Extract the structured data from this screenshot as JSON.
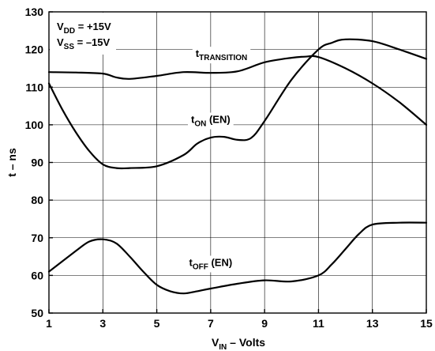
{
  "chart_data": {
    "type": "line",
    "title": "",
    "xlabel": {
      "main": "V",
      "sub": "IN",
      "rest": " – Volts"
    },
    "ylabel": "t – ns",
    "xlim": [
      1,
      15
    ],
    "ylim": [
      50,
      130
    ],
    "xticks": [
      1,
      3,
      5,
      7,
      9,
      11,
      13,
      15
    ],
    "yticks": [
      50,
      60,
      70,
      80,
      90,
      100,
      110,
      120,
      130
    ],
    "grid": true,
    "legend": "none",
    "conditions": [
      {
        "main": "V",
        "sub": "DD",
        "rest": " = +15V"
      },
      {
        "main": "V",
        "sub": "SS",
        "rest": " = –15V"
      }
    ],
    "series": [
      {
        "name": "tTRANSITION",
        "label": {
          "main": "t",
          "sub": "TRANSITION",
          "rest": "",
          "at": [
            7.4,
            118
          ]
        },
        "x": [
          1,
          2,
          3,
          3.5,
          4,
          5,
          6,
          7,
          8,
          9,
          10,
          10.5,
          11,
          12,
          13,
          14,
          15
        ],
        "y": [
          114,
          113.9,
          113.6,
          112.6,
          112.2,
          113,
          114,
          113.8,
          114.2,
          116.6,
          117.8,
          118.1,
          118,
          115,
          111,
          106,
          100
        ]
      },
      {
        "name": "tON (EN)",
        "label": {
          "main": "t",
          "sub": "ON",
          "rest": " (EN)",
          "at": [
            7.0,
            100.5
          ]
        },
        "x": [
          1,
          1.5,
          2,
          2.5,
          3,
          3.5,
          4,
          5,
          6,
          6.5,
          7,
          7.5,
          8,
          8.5,
          9,
          10,
          11,
          11.5,
          12,
          13,
          14,
          15
        ],
        "y": [
          111,
          104,
          98,
          93,
          89.5,
          88.5,
          88.5,
          89,
          92,
          95,
          96.6,
          96.8,
          96,
          96.5,
          101,
          112,
          120,
          121.8,
          122.7,
          122.2,
          120,
          117.5
        ]
      },
      {
        "name": "tOFF (EN)",
        "label": {
          "main": "t",
          "sub": "OFF",
          "rest": " (EN)",
          "at": [
            7.0,
            62.5
          ]
        },
        "x": [
          1,
          2,
          2.5,
          3,
          3.5,
          4,
          4.5,
          5,
          5.5,
          6,
          6.5,
          7,
          8,
          9,
          10,
          11,
          11.5,
          12,
          12.5,
          13,
          14,
          15
        ],
        "y": [
          61,
          66.5,
          69,
          69.6,
          68.5,
          65,
          61,
          57.5,
          55.8,
          55.2,
          55.8,
          56.5,
          57.8,
          58.7,
          58.4,
          60,
          63,
          67,
          71,
          73.5,
          74,
          74
        ]
      }
    ]
  }
}
